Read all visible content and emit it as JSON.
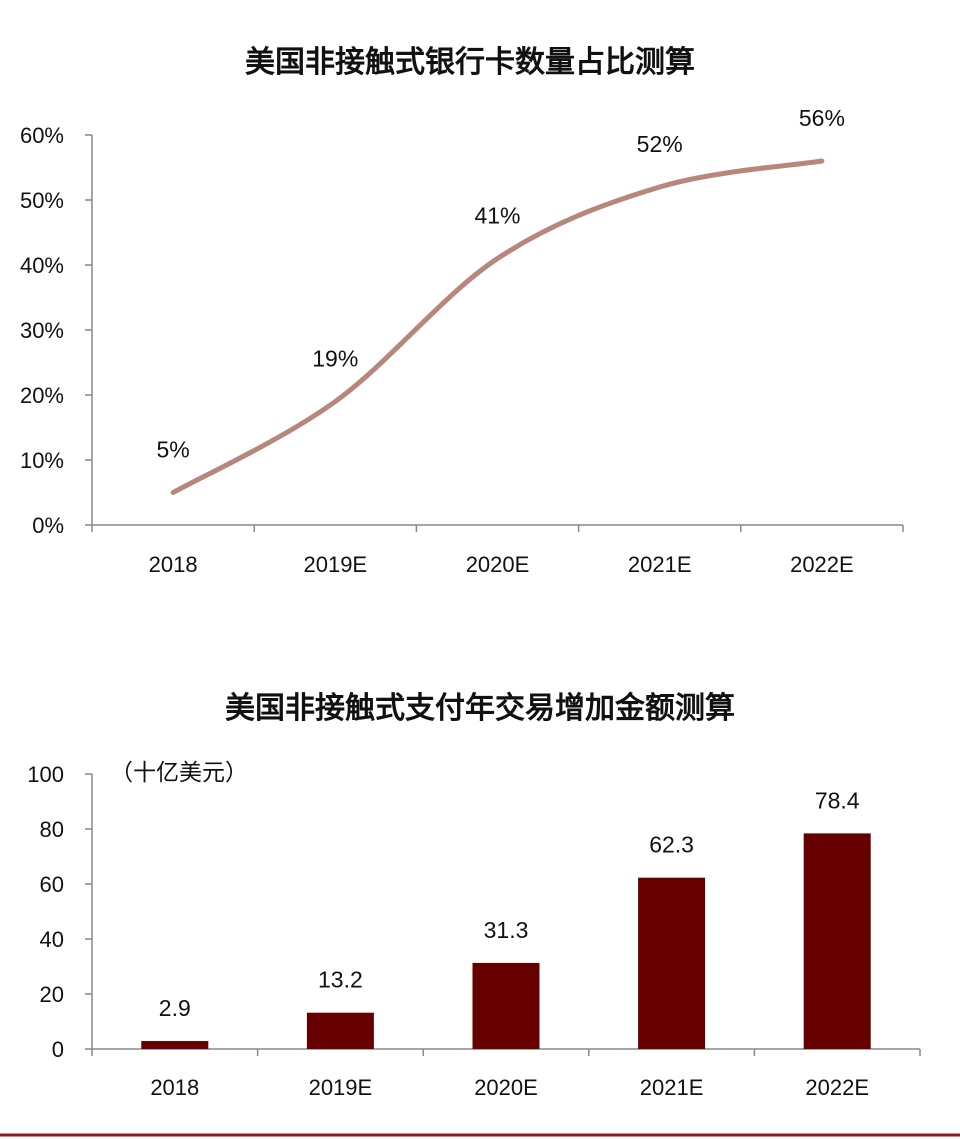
{
  "chart_data": [
    {
      "type": "line",
      "title": "美国非接触式银行卡数量占比测算",
      "categories": [
        "2018",
        "2019E",
        "2020E",
        "2021E",
        "2022E"
      ],
      "values": [
        5,
        19,
        41,
        52,
        56
      ],
      "data_labels": [
        "5%",
        "19%",
        "41%",
        "52%",
        "56%"
      ],
      "y_ticks": [
        "0%",
        "10%",
        "20%",
        "30%",
        "40%",
        "50%",
        "60%"
      ],
      "ylim": [
        0,
        60
      ],
      "line_color": "#B8877B",
      "smooth": true,
      "grid": false
    },
    {
      "type": "bar",
      "title": "美国非接触式支付年交易增加金额测算",
      "unit_label": "（十亿美元）",
      "categories": [
        "2018",
        "2019E",
        "2020E",
        "2021E",
        "2022E"
      ],
      "values": [
        2.9,
        13.2,
        31.3,
        62.3,
        78.4
      ],
      "data_labels": [
        "2.9",
        "13.2",
        "31.3",
        "62.3",
        "78.4"
      ],
      "y_ticks": [
        "0",
        "20",
        "40",
        "60",
        "80",
        "100"
      ],
      "ylim": [
        0,
        100
      ],
      "bar_color": "#660000",
      "grid": false
    }
  ],
  "footer_rule_color": "#8B1A1A"
}
